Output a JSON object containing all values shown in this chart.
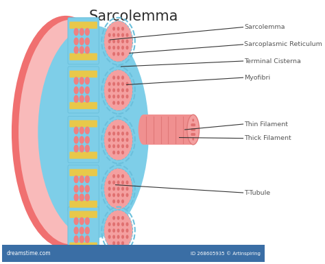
{
  "title": "Sarcolemma",
  "title_fontsize": 15,
  "title_color": "#2c2c2c",
  "background_color": "#ffffff",
  "labels": [
    "Sarcolemma",
    "Sarcoplasmic Reticulum",
    "Terminal Cisterna",
    "Myofibri",
    "Thin Filament",
    "Thick Filament",
    "T-Tubule"
  ],
  "colors": {
    "outer_muscle": "#F07070",
    "sarcolemma_ring": "#F9BABA",
    "sr_blue": "#7ECEE8",
    "sr_blue_mid": "#6BC0DC",
    "yellow_stripe": "#E8C84A",
    "pink_blob": "#F08080",
    "pink_blob_light": "#F4A0A0",
    "myofibril_oval": "#F4A0A0",
    "myofibril_dot": "#E07070",
    "myofibril_tube": "#F09090",
    "myofibril_stripe": "#E07878",
    "label_color": "#555555",
    "line_color": "#333333"
  },
  "watermark": "dreamstime.com",
  "watermark_id": "ID 268605935 © Artinspiring"
}
